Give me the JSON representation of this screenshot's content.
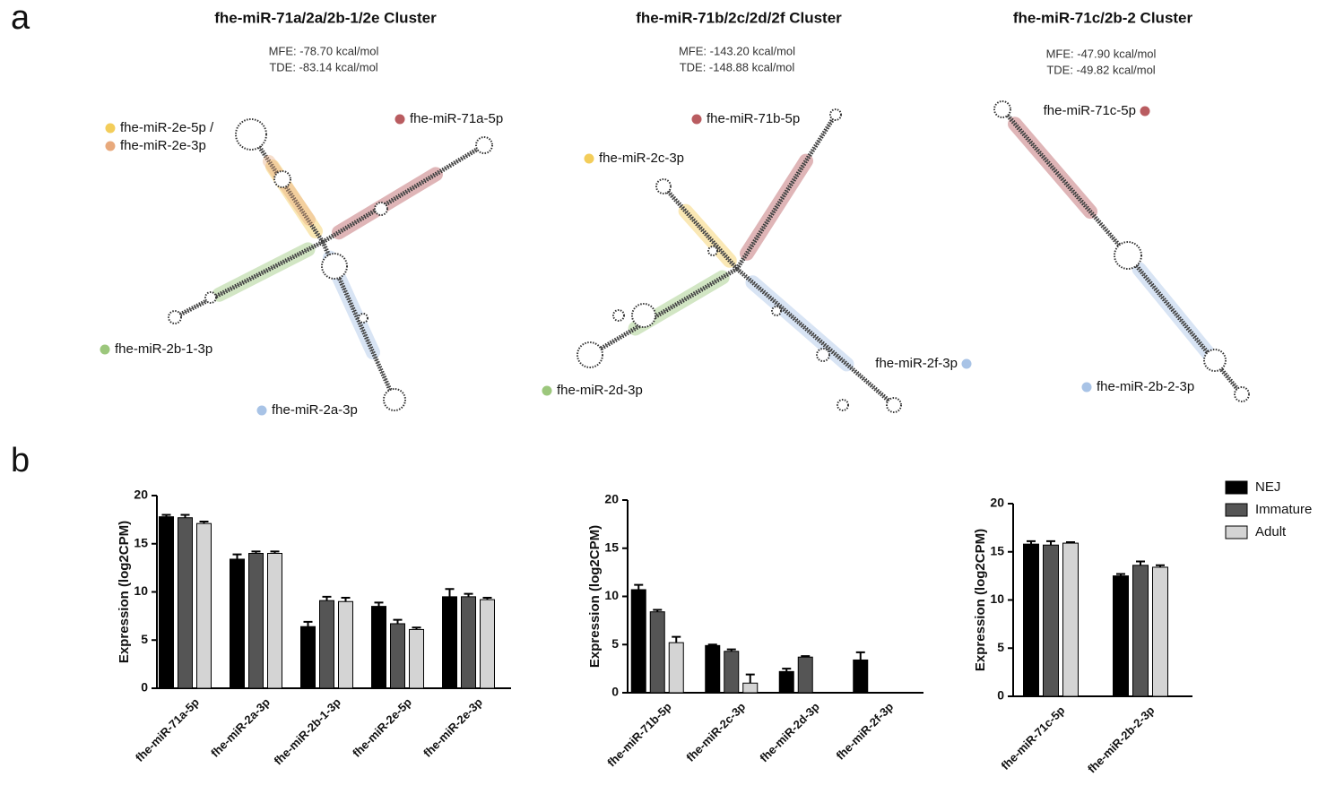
{
  "panels": {
    "a": "a",
    "b": "b"
  },
  "clusters": [
    {
      "title": "fhe-miR-71a/2a/2b-1/2e Cluster",
      "mfe": "MFE: -78.70 kcal/mol",
      "tde": "TDE: -83.14 kcal/mol",
      "mirnas": [
        {
          "label": "fhe-miR-2e-5p /",
          "color": "#f3cd5a"
        },
        {
          "label": "fhe-miR-2e-3p",
          "color": "#e8a97c"
        },
        {
          "label": "fhe-miR-71a-5p",
          "color": "#b95c60"
        },
        {
          "label": "fhe-miR-2b-1-3p",
          "color": "#9cc77c"
        },
        {
          "label": "fhe-miR-2a-3p",
          "color": "#a8c3e6"
        }
      ]
    },
    {
      "title": "fhe-miR-71b/2c/2d/2f Cluster",
      "mfe": "MFE: -143.20 kcal/mol",
      "tde": "TDE: -148.88 kcal/mol",
      "mirnas": [
        {
          "label": "fhe-miR-71b-5p",
          "color": "#b95c60"
        },
        {
          "label": "fhe-miR-2c-3p",
          "color": "#f3cd5a"
        },
        {
          "label": "fhe-miR-2d-3p",
          "color": "#9cc77c"
        },
        {
          "label": "fhe-miR-2f-3p",
          "color": "#a8c3e6"
        }
      ]
    },
    {
      "title": "fhe-miR-71c/2b-2 Cluster",
      "mfe": "MFE: -47.90 kcal/mol",
      "tde": "TDE: -49.82 kcal/mol",
      "mirnas": [
        {
          "label": "fhe-miR-71c-5p",
          "color": "#b95c60"
        },
        {
          "label": "fhe-miR-2b-2-3p",
          "color": "#a8c3e6"
        }
      ]
    }
  ],
  "chart_data": [
    {
      "type": "bar",
      "y_label": "Expression  (log2CPM)",
      "categories": [
        "fhe-miR-71a-5p",
        "fhe-miR-2a-3p",
        "fhe-miR-2b-1-3p",
        "fhe-miR-2e-5p",
        "fhe-miR-2e-3p"
      ],
      "series": [
        {
          "color": "#000000",
          "values": [
            17.8,
            13.4,
            6.4,
            8.5,
            9.5
          ],
          "errors": [
            0.2,
            0.5,
            0.5,
            0.4,
            0.8
          ]
        },
        {
          "color": "#555555",
          "values": [
            17.7,
            14.0,
            9.1,
            6.7,
            9.5
          ],
          "errors": [
            0.3,
            0.2,
            0.4,
            0.4,
            0.3
          ]
        },
        {
          "color": "#d4d4d4",
          "values": [
            17.1,
            14.0,
            9.0,
            6.1,
            9.2
          ],
          "errors": [
            0.2,
            0.2,
            0.4,
            0.2,
            0.2
          ]
        }
      ],
      "ylim": [
        0,
        20
      ],
      "yticks": [
        0,
        5,
        10,
        15,
        20
      ]
    },
    {
      "type": "bar",
      "y_label": "Expression  (log2CPM)",
      "categories": [
        "fhe-miR-71b-5p",
        "fhe-miR-2c-3p",
        "fhe-miR-2d-3p",
        "fhe-miR-2f-3p"
      ],
      "series": [
        {
          "color": "#000000",
          "values": [
            10.7,
            4.9,
            2.2,
            3.4
          ],
          "errors": [
            0.5,
            0.1,
            0.3,
            0.8
          ]
        },
        {
          "color": "#555555",
          "values": [
            8.4,
            4.3,
            3.7,
            null
          ],
          "errors": [
            0.2,
            0.2,
            0.1,
            null
          ]
        },
        {
          "color": "#d4d4d4",
          "values": [
            5.2,
            1.0,
            null,
            null
          ],
          "errors": [
            0.6,
            0.9,
            null,
            null
          ]
        }
      ],
      "ylim": [
        0,
        20
      ],
      "yticks": [
        0,
        5,
        10,
        15,
        20
      ]
    },
    {
      "type": "bar",
      "y_label": "Expression  (log2CPM)",
      "categories": [
        "fhe-miR-71c-5p",
        "fhe-miR-2b-2-3p"
      ],
      "series": [
        {
          "name": "NEJ",
          "color": "#000000",
          "values": [
            15.8,
            12.5
          ],
          "errors": [
            0.3,
            0.2
          ]
        },
        {
          "name": "Immature",
          "color": "#555555",
          "values": [
            15.7,
            13.6
          ],
          "errors": [
            0.4,
            0.4
          ]
        },
        {
          "name": "Adult",
          "color": "#d4d4d4",
          "values": [
            15.9,
            13.4
          ],
          "errors": [
            0.1,
            0.2
          ]
        }
      ],
      "ylim": [
        0,
        20
      ],
      "yticks": [
        0,
        5,
        10,
        15,
        20
      ],
      "legend": "right"
    }
  ]
}
